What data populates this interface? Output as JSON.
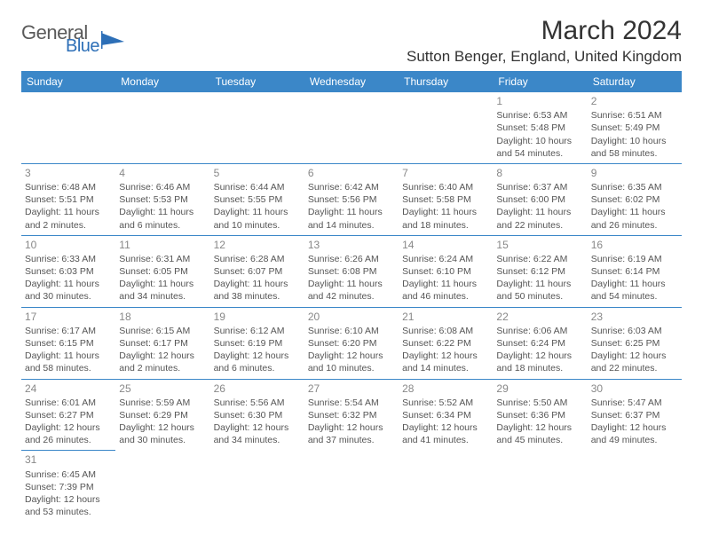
{
  "logo": {
    "main": "General",
    "sub": "Blue"
  },
  "title": "March 2024",
  "location": "Sutton Benger, England, United Kingdom",
  "colors": {
    "header_bg": "#3b87c8",
    "header_text": "#ffffff",
    "border": "#3b87c8",
    "body_text": "#555555",
    "daynum": "#888888",
    "logo_main": "#5a5a5a",
    "logo_sub": "#2d6fb7"
  },
  "weekdays": [
    "Sunday",
    "Monday",
    "Tuesday",
    "Wednesday",
    "Thursday",
    "Friday",
    "Saturday"
  ],
  "weeks": [
    [
      null,
      null,
      null,
      null,
      null,
      {
        "n": "1",
        "sunrise": "6:53 AM",
        "sunset": "5:48 PM",
        "daylight": "10 hours and 54 minutes."
      },
      {
        "n": "2",
        "sunrise": "6:51 AM",
        "sunset": "5:49 PM",
        "daylight": "10 hours and 58 minutes."
      }
    ],
    [
      {
        "n": "3",
        "sunrise": "6:48 AM",
        "sunset": "5:51 PM",
        "daylight": "11 hours and 2 minutes."
      },
      {
        "n": "4",
        "sunrise": "6:46 AM",
        "sunset": "5:53 PM",
        "daylight": "11 hours and 6 minutes."
      },
      {
        "n": "5",
        "sunrise": "6:44 AM",
        "sunset": "5:55 PM",
        "daylight": "11 hours and 10 minutes."
      },
      {
        "n": "6",
        "sunrise": "6:42 AM",
        "sunset": "5:56 PM",
        "daylight": "11 hours and 14 minutes."
      },
      {
        "n": "7",
        "sunrise": "6:40 AM",
        "sunset": "5:58 PM",
        "daylight": "11 hours and 18 minutes."
      },
      {
        "n": "8",
        "sunrise": "6:37 AM",
        "sunset": "6:00 PM",
        "daylight": "11 hours and 22 minutes."
      },
      {
        "n": "9",
        "sunrise": "6:35 AM",
        "sunset": "6:02 PM",
        "daylight": "11 hours and 26 minutes."
      }
    ],
    [
      {
        "n": "10",
        "sunrise": "6:33 AM",
        "sunset": "6:03 PM",
        "daylight": "11 hours and 30 minutes."
      },
      {
        "n": "11",
        "sunrise": "6:31 AM",
        "sunset": "6:05 PM",
        "daylight": "11 hours and 34 minutes."
      },
      {
        "n": "12",
        "sunrise": "6:28 AM",
        "sunset": "6:07 PM",
        "daylight": "11 hours and 38 minutes."
      },
      {
        "n": "13",
        "sunrise": "6:26 AM",
        "sunset": "6:08 PM",
        "daylight": "11 hours and 42 minutes."
      },
      {
        "n": "14",
        "sunrise": "6:24 AM",
        "sunset": "6:10 PM",
        "daylight": "11 hours and 46 minutes."
      },
      {
        "n": "15",
        "sunrise": "6:22 AM",
        "sunset": "6:12 PM",
        "daylight": "11 hours and 50 minutes."
      },
      {
        "n": "16",
        "sunrise": "6:19 AM",
        "sunset": "6:14 PM",
        "daylight": "11 hours and 54 minutes."
      }
    ],
    [
      {
        "n": "17",
        "sunrise": "6:17 AM",
        "sunset": "6:15 PM",
        "daylight": "11 hours and 58 minutes."
      },
      {
        "n": "18",
        "sunrise": "6:15 AM",
        "sunset": "6:17 PM",
        "daylight": "12 hours and 2 minutes."
      },
      {
        "n": "19",
        "sunrise": "6:12 AM",
        "sunset": "6:19 PM",
        "daylight": "12 hours and 6 minutes."
      },
      {
        "n": "20",
        "sunrise": "6:10 AM",
        "sunset": "6:20 PM",
        "daylight": "12 hours and 10 minutes."
      },
      {
        "n": "21",
        "sunrise": "6:08 AM",
        "sunset": "6:22 PM",
        "daylight": "12 hours and 14 minutes."
      },
      {
        "n": "22",
        "sunrise": "6:06 AM",
        "sunset": "6:24 PM",
        "daylight": "12 hours and 18 minutes."
      },
      {
        "n": "23",
        "sunrise": "6:03 AM",
        "sunset": "6:25 PM",
        "daylight": "12 hours and 22 minutes."
      }
    ],
    [
      {
        "n": "24",
        "sunrise": "6:01 AM",
        "sunset": "6:27 PM",
        "daylight": "12 hours and 26 minutes."
      },
      {
        "n": "25",
        "sunrise": "5:59 AM",
        "sunset": "6:29 PM",
        "daylight": "12 hours and 30 minutes."
      },
      {
        "n": "26",
        "sunrise": "5:56 AM",
        "sunset": "6:30 PM",
        "daylight": "12 hours and 34 minutes."
      },
      {
        "n": "27",
        "sunrise": "5:54 AM",
        "sunset": "6:32 PM",
        "daylight": "12 hours and 37 minutes."
      },
      {
        "n": "28",
        "sunrise": "5:52 AM",
        "sunset": "6:34 PM",
        "daylight": "12 hours and 41 minutes."
      },
      {
        "n": "29",
        "sunrise": "5:50 AM",
        "sunset": "6:36 PM",
        "daylight": "12 hours and 45 minutes."
      },
      {
        "n": "30",
        "sunrise": "5:47 AM",
        "sunset": "6:37 PM",
        "daylight": "12 hours and 49 minutes."
      }
    ],
    [
      {
        "n": "31",
        "sunrise": "6:45 AM",
        "sunset": "7:39 PM",
        "daylight": "12 hours and 53 minutes."
      },
      null,
      null,
      null,
      null,
      null,
      null
    ]
  ],
  "labels": {
    "sunrise_prefix": "Sunrise: ",
    "sunset_prefix": "Sunset: ",
    "daylight_prefix": "Daylight: "
  }
}
